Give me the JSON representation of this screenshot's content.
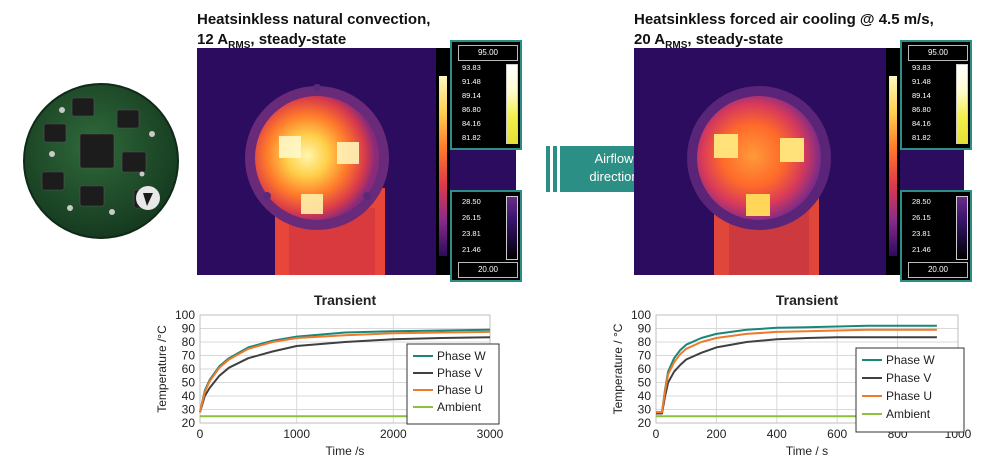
{
  "left_panel": {
    "title_line1": "Heatsinkless natural convection,",
    "title_line2_prefix": "12 A",
    "title_line2_sub": "RMS",
    "title_line2_suffix": ", steady-state",
    "scale_top": {
      "max": "95.00",
      "levels": [
        "93.83",
        "91.48",
        "89.14",
        "86.80",
        "84.16",
        "81.82"
      ]
    },
    "scale_bottom": {
      "levels": [
        "28.50",
        "26.15",
        "23.81",
        "21.46"
      ],
      "min": "20.00"
    }
  },
  "right_panel": {
    "title_line1": "Heatsinkless forced air cooling @ 4.5 m/s,",
    "title_line2_prefix": "20 A",
    "title_line2_sub": "RMS",
    "title_line2_suffix": ", steady-state",
    "scale_top": {
      "max": "95.00",
      "levels": [
        "93.83",
        "91.48",
        "89.14",
        "86.80",
        "84.16",
        "81.82"
      ]
    },
    "scale_bottom": {
      "levels": [
        "28.50",
        "26.15",
        "23.81",
        "21.46"
      ],
      "min": "20.00"
    }
  },
  "arrow": {
    "line1": "Airflow",
    "line2": "direction"
  },
  "colors": {
    "phase_w": "#17877a",
    "phase_v": "#404040",
    "phase_u": "#ee7a2a",
    "ambient": "#8fbf3f",
    "accent": "#2c8f86"
  },
  "chart_data": [
    {
      "type": "line",
      "title": "Transient",
      "xlabel": "Time /s",
      "ylabel": "Temperature  /°C",
      "xlim": [
        0,
        3000
      ],
      "ylim": [
        20,
        100
      ],
      "xticks": [
        0,
        1000,
        2000,
        3000
      ],
      "yticks": [
        20,
        30,
        40,
        50,
        60,
        70,
        80,
        90,
        100
      ],
      "grid": true,
      "legend_position": "bottom-right",
      "series": [
        {
          "name": "Phase W",
          "color": "#17877a",
          "x": [
            0,
            50,
            100,
            200,
            300,
            500,
            750,
            1000,
            1500,
            2000,
            2500,
            3000
          ],
          "y": [
            28,
            44,
            52,
            62,
            68,
            76,
            81,
            84,
            87,
            88,
            88.5,
            89
          ]
        },
        {
          "name": "Phase V",
          "color": "#404040",
          "x": [
            0,
            50,
            100,
            200,
            300,
            500,
            750,
            1000,
            1500,
            2000,
            2500,
            3000
          ],
          "y": [
            28,
            40,
            46,
            55,
            61,
            68,
            73,
            77,
            80,
            82,
            83,
            83.5
          ]
        },
        {
          "name": "Phase U",
          "color": "#ee7a2a",
          "x": [
            0,
            50,
            100,
            200,
            300,
            500,
            750,
            1000,
            1500,
            2000,
            2500,
            3000
          ],
          "y": [
            28,
            43,
            51,
            61,
            67,
            75,
            80,
            83,
            85,
            86.5,
            87,
            87.5
          ]
        },
        {
          "name": "Ambient",
          "color": "#8fbf3f",
          "x": [
            0,
            500,
            1000,
            1500,
            2000,
            2500,
            3000
          ],
          "y": [
            25,
            25,
            25,
            25,
            25,
            25,
            25
          ]
        }
      ]
    },
    {
      "type": "line",
      "title": "Transient",
      "xlabel": "Time / s",
      "ylabel": "Temperature / °C",
      "xlim": [
        0,
        1000
      ],
      "ylim": [
        20,
        100
      ],
      "xticks": [
        0,
        200,
        400,
        600,
        800,
        1000
      ],
      "yticks": [
        20,
        30,
        40,
        50,
        60,
        70,
        80,
        90,
        100
      ],
      "grid": true,
      "legend_position": "bottom-right",
      "series": [
        {
          "name": "Phase W",
          "color": "#17877a",
          "x": [
            0,
            20,
            30,
            40,
            60,
            80,
            100,
            150,
            200,
            300,
            400,
            500,
            600,
            700,
            800,
            930
          ],
          "y": [
            28,
            28,
            45,
            58,
            68,
            74,
            78,
            83,
            86,
            89,
            90.5,
            91,
            91.5,
            92,
            92,
            92
          ]
        },
        {
          "name": "Phase V",
          "color": "#404040",
          "x": [
            0,
            20,
            30,
            40,
            60,
            80,
            100,
            150,
            200,
            300,
            400,
            500,
            600,
            700,
            800,
            930
          ],
          "y": [
            27,
            27,
            40,
            50,
            58,
            63,
            67,
            72,
            76,
            80,
            82,
            83,
            83.5,
            83.5,
            83.5,
            83.5
          ]
        },
        {
          "name": "Phase U",
          "color": "#ee7a2a",
          "x": [
            0,
            20,
            30,
            40,
            60,
            80,
            100,
            150,
            200,
            300,
            400,
            500,
            600,
            700,
            800,
            930
          ],
          "y": [
            28,
            28,
            44,
            56,
            65,
            71,
            75,
            80,
            83,
            86,
            87.5,
            88,
            88.5,
            89,
            89,
            89
          ]
        },
        {
          "name": "Ambient",
          "color": "#8fbf3f",
          "x": [
            0,
            200,
            400,
            600,
            800,
            930
          ],
          "y": [
            25,
            25,
            25,
            25,
            25,
            25
          ]
        }
      ]
    }
  ]
}
